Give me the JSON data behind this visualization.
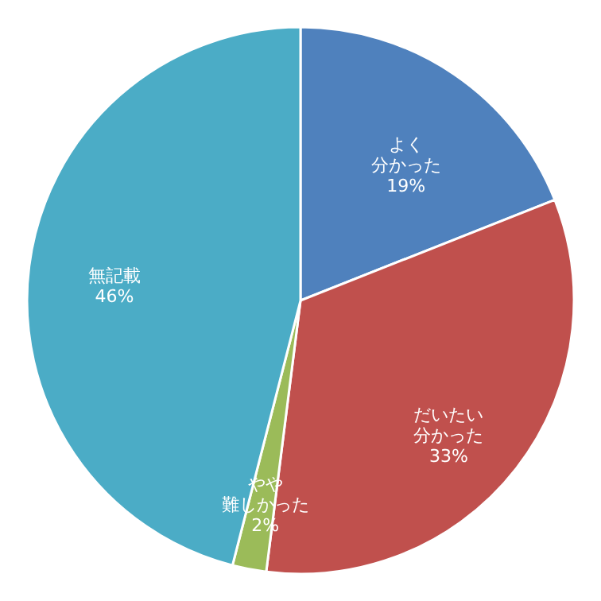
{
  "chart_data": {
    "type": "pie",
    "categories": [
      "よく分かった",
      "だいたい分かった",
      "やや難しかった",
      "無記載"
    ],
    "values": [
      19,
      33,
      2,
      46
    ],
    "value_labels": [
      "19%",
      "33%",
      "2%",
      "46%"
    ],
    "colors": [
      "#4f81bd",
      "#c0504d",
      "#9bbb59",
      "#4bacc6"
    ]
  }
}
